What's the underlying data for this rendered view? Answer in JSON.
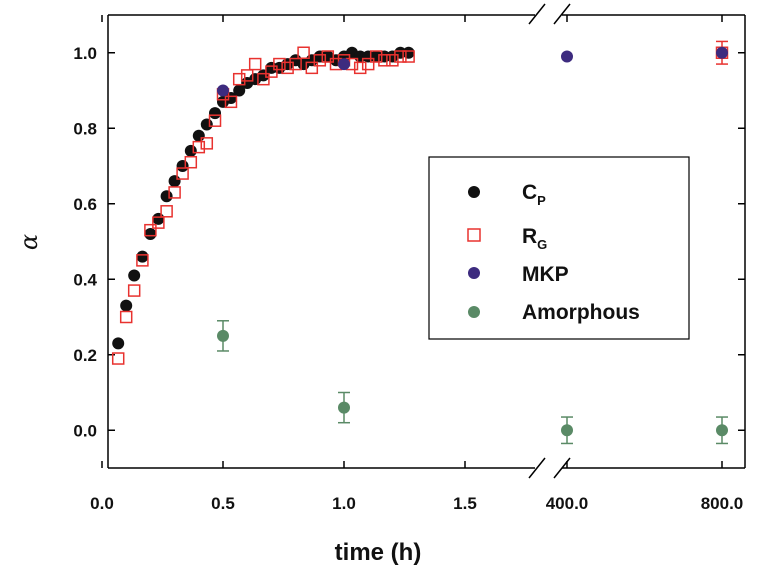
{
  "chart_data": {
    "type": "scatter",
    "xlabel": "time (h)",
    "ylabel": "α",
    "ylim": [
      -0.1,
      1.1
    ],
    "y_ticks": [
      "0.0",
      "0.2",
      "0.4",
      "0.6",
      "0.8",
      "1.0"
    ],
    "x_ticks_linear": [
      "0.0",
      "0.5",
      "1.0",
      "1.5"
    ],
    "x_ticks_broken": [
      "400.0",
      "800.0"
    ],
    "x_axis_break": "between 1.5 and 400.0",
    "legend_position": "right",
    "series": [
      {
        "name": "C",
        "name_subscript": "P",
        "marker": "filled-circle",
        "color": "#111111",
        "x": [
          0.067,
          0.1,
          0.133,
          0.167,
          0.2,
          0.233,
          0.267,
          0.3,
          0.333,
          0.367,
          0.4,
          0.433,
          0.467,
          0.5,
          0.533,
          0.567,
          0.6,
          0.633,
          0.667,
          0.7,
          0.733,
          0.767,
          0.8,
          0.833,
          0.867,
          0.9,
          0.933,
          0.967,
          1.0,
          1.033,
          1.067,
          1.1,
          1.133,
          1.167,
          1.2,
          1.233,
          1.267
        ],
        "y": [
          0.23,
          0.33,
          0.41,
          0.46,
          0.52,
          0.56,
          0.62,
          0.66,
          0.7,
          0.74,
          0.78,
          0.81,
          0.84,
          0.87,
          0.88,
          0.9,
          0.92,
          0.93,
          0.94,
          0.96,
          0.96,
          0.97,
          0.98,
          0.97,
          0.98,
          0.99,
          0.99,
          0.98,
          0.99,
          1.0,
          0.99,
          0.99,
          0.99,
          0.99,
          0.99,
          1.0,
          1.0
        ]
      },
      {
        "name": "R",
        "name_subscript": "G",
        "marker": "open-square",
        "color": "#e8322f",
        "x": [
          0.067,
          0.1,
          0.133,
          0.167,
          0.2,
          0.233,
          0.267,
          0.3,
          0.333,
          0.367,
          0.4,
          0.433,
          0.467,
          0.5,
          0.533,
          0.567,
          0.6,
          0.633,
          0.667,
          0.7,
          0.733,
          0.767,
          0.8,
          0.833,
          0.867,
          0.9,
          0.933,
          0.967,
          1.0,
          1.033,
          1.067,
          1.1,
          1.133,
          1.167,
          1.2,
          1.233,
          1.267,
          800.0
        ],
        "y": [
          0.19,
          0.3,
          0.37,
          0.45,
          0.53,
          0.55,
          0.58,
          0.63,
          0.68,
          0.71,
          0.75,
          0.76,
          0.82,
          0.89,
          0.87,
          0.93,
          0.94,
          0.97,
          0.93,
          0.95,
          0.97,
          0.96,
          0.97,
          1.0,
          0.96,
          0.98,
          0.99,
          0.97,
          0.98,
          0.97,
          0.96,
          0.97,
          0.99,
          0.98,
          0.98,
          0.99,
          0.99,
          1.0
        ],
        "y_error": [
          0,
          0,
          0,
          0,
          0,
          0,
          0,
          0,
          0,
          0,
          0,
          0,
          0,
          0,
          0,
          0,
          0,
          0,
          0,
          0,
          0,
          0,
          0,
          0,
          0,
          0,
          0,
          0,
          0,
          0,
          0,
          0,
          0,
          0,
          0,
          0,
          0,
          0.03
        ]
      },
      {
        "name": "MKP",
        "marker": "filled-circle",
        "color": "#3d2b7f",
        "x": [
          0.5,
          1.0,
          400.0,
          800.0
        ],
        "y": [
          0.9,
          0.97,
          0.99,
          1.0
        ]
      },
      {
        "name": "Amorphous",
        "marker": "filled-circle",
        "color": "#5a8a66",
        "x": [
          0.5,
          1.0,
          400.0,
          800.0
        ],
        "y": [
          0.25,
          0.06,
          0.0,
          0.0
        ],
        "y_error": [
          0.04,
          0.04,
          0.035,
          0.035
        ]
      }
    ]
  }
}
